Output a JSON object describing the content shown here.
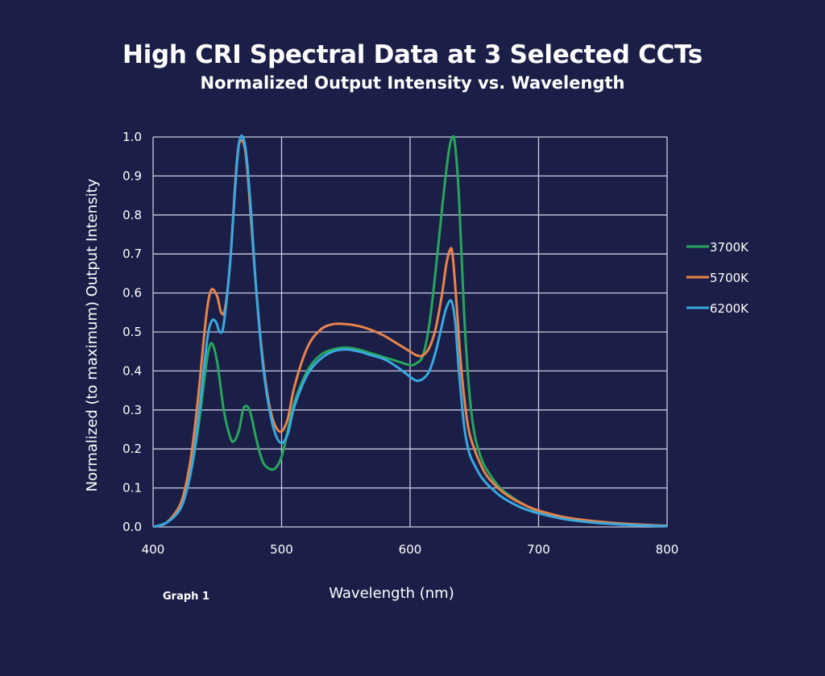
{
  "chart_data": {
    "type": "line",
    "title": "High CRI Spectral Data at 3 Selected CCTs",
    "subtitle": "Normalized Output Intensity vs. Wavelength",
    "xlabel": "Wavelength (nm)",
    "ylabel": "Normalized  (to maximum) Output Intensity",
    "xlim": [
      400,
      800
    ],
    "ylim": [
      0,
      1.0
    ],
    "xticks": [
      "400",
      "500",
      "600",
      "700",
      "800"
    ],
    "yticks": [
      "0.0",
      "0.1",
      "0.2",
      "0.3",
      "0.4",
      "0.5",
      "0.6",
      "0.7",
      "0.8",
      "0.9",
      "1.0"
    ],
    "grid": true,
    "legend_position": "right",
    "caption": "Graph 1",
    "series": [
      {
        "name": "3700K",
        "color": "#26a65b",
        "x": [
          400,
          410,
          420,
          425,
          430,
          435,
          440,
          443,
          446,
          450,
          455,
          460,
          463,
          467,
          470,
          473,
          476,
          480,
          485,
          490,
          495,
          500,
          505,
          510,
          520,
          530,
          540,
          550,
          560,
          570,
          580,
          590,
          600,
          605,
          610,
          615,
          620,
          625,
          630,
          633,
          635,
          638,
          642,
          646,
          650,
          655,
          660,
          670,
          680,
          690,
          700,
          720,
          740,
          760,
          780,
          800
        ],
        "y": [
          0.0,
          0.01,
          0.04,
          0.08,
          0.15,
          0.25,
          0.38,
          0.45,
          0.47,
          0.42,
          0.3,
          0.23,
          0.22,
          0.25,
          0.3,
          0.31,
          0.29,
          0.23,
          0.17,
          0.15,
          0.15,
          0.18,
          0.25,
          0.32,
          0.4,
          0.44,
          0.455,
          0.46,
          0.455,
          0.445,
          0.435,
          0.425,
          0.415,
          0.42,
          0.44,
          0.52,
          0.66,
          0.82,
          0.96,
          1.0,
          0.98,
          0.85,
          0.55,
          0.35,
          0.24,
          0.18,
          0.145,
          0.1,
          0.075,
          0.055,
          0.04,
          0.024,
          0.015,
          0.009,
          0.005,
          0.003
        ]
      },
      {
        "name": "5700K",
        "color": "#e8834a",
        "x": [
          400,
          410,
          420,
          425,
          430,
          435,
          440,
          443,
          446,
          450,
          453,
          456,
          460,
          465,
          468,
          472,
          476,
          480,
          485,
          490,
          495,
          500,
          505,
          510,
          520,
          530,
          540,
          550,
          560,
          570,
          580,
          590,
          600,
          605,
          610,
          615,
          620,
          625,
          628,
          631,
          633,
          636,
          640,
          645,
          650,
          655,
          660,
          670,
          680,
          690,
          700,
          720,
          740,
          760,
          780,
          800
        ],
        "y": [
          0.0,
          0.01,
          0.05,
          0.1,
          0.19,
          0.33,
          0.5,
          0.58,
          0.61,
          0.59,
          0.55,
          0.56,
          0.68,
          0.93,
          0.99,
          0.96,
          0.8,
          0.62,
          0.44,
          0.32,
          0.26,
          0.245,
          0.28,
          0.36,
          0.46,
          0.505,
          0.52,
          0.52,
          0.515,
          0.505,
          0.49,
          0.47,
          0.45,
          0.44,
          0.44,
          0.46,
          0.51,
          0.6,
          0.67,
          0.71,
          0.7,
          0.58,
          0.4,
          0.26,
          0.2,
          0.16,
          0.13,
          0.095,
          0.072,
          0.055,
          0.042,
          0.025,
          0.016,
          0.01,
          0.006,
          0.003
        ]
      },
      {
        "name": "6200K",
        "color": "#38a8e0",
        "x": [
          400,
          410,
          420,
          425,
          430,
          435,
          440,
          443,
          446,
          449,
          452,
          455,
          460,
          465,
          468,
          472,
          476,
          480,
          485,
          490,
          495,
          500,
          505,
          510,
          520,
          530,
          540,
          550,
          560,
          570,
          580,
          590,
          600,
          605,
          610,
          615,
          620,
          625,
          628,
          632,
          635,
          638,
          642,
          646,
          650,
          655,
          660,
          670,
          680,
          690,
          700,
          720,
          740,
          760,
          780,
          800
        ],
        "y": [
          0.0,
          0.01,
          0.04,
          0.08,
          0.15,
          0.27,
          0.42,
          0.5,
          0.53,
          0.525,
          0.5,
          0.52,
          0.68,
          0.92,
          1.0,
          0.97,
          0.82,
          0.62,
          0.43,
          0.31,
          0.24,
          0.215,
          0.24,
          0.31,
          0.39,
          0.43,
          0.45,
          0.455,
          0.45,
          0.44,
          0.43,
          0.41,
          0.385,
          0.375,
          0.38,
          0.4,
          0.45,
          0.52,
          0.56,
          0.58,
          0.53,
          0.4,
          0.26,
          0.19,
          0.16,
          0.13,
          0.11,
          0.08,
          0.06,
          0.045,
          0.035,
          0.02,
          0.012,
          0.007,
          0.004,
          0.002
        ]
      }
    ]
  }
}
